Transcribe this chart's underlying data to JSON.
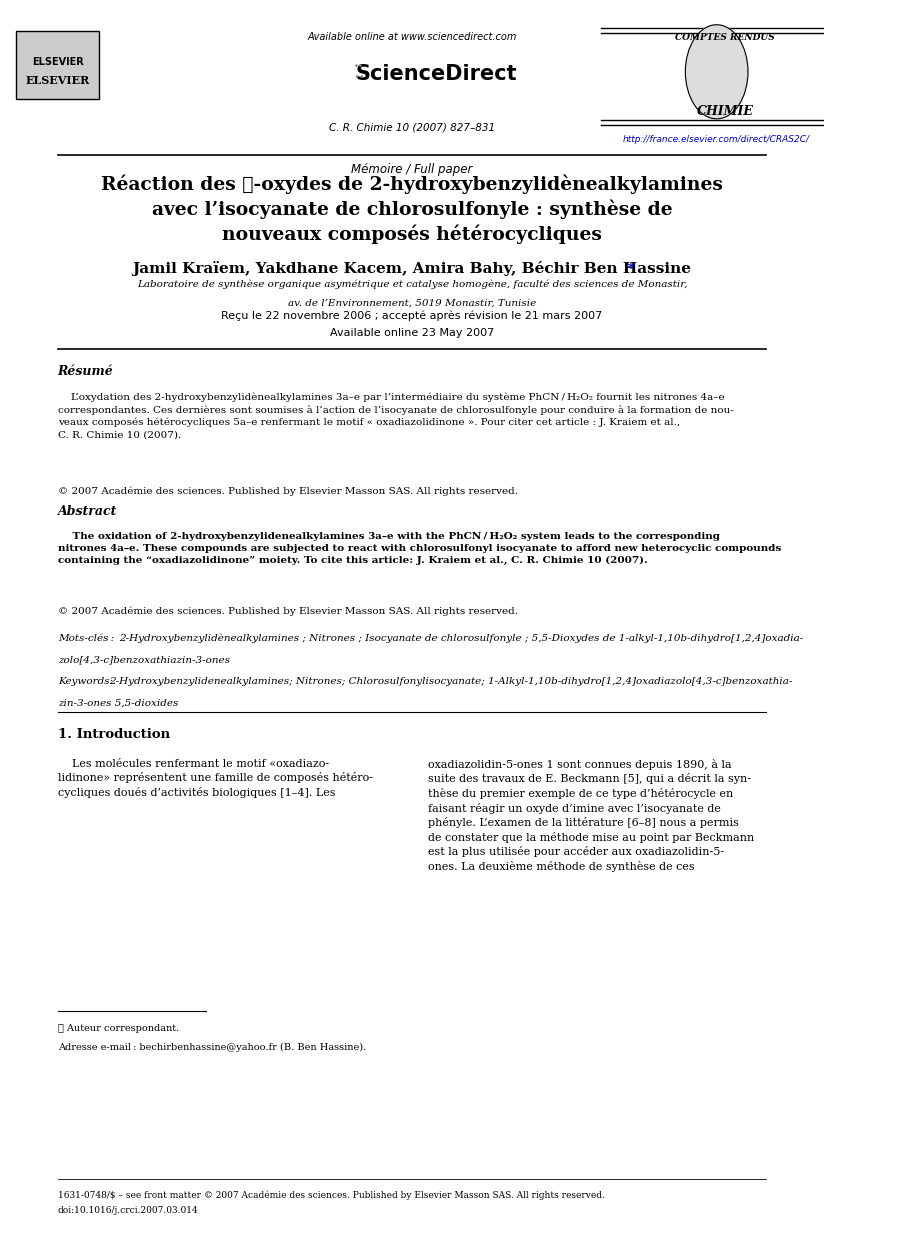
{
  "page_width": 9.07,
  "page_height": 12.38,
  "bg_color": "#ffffff",
  "header": {
    "available_online": "Available online at www.sciencedirect.com",
    "journal_info": "C. R. Chimie 10 (2007) 827–831",
    "url": "http://france.elsevier.com/direct/CRAS2C/",
    "comptes_rendus": "COMPTES RENDUS",
    "chimie": "CHIMIE"
  },
  "section_label": "Mémoire / Full paper",
  "title_line1": "Réaction des ℱ-oxydes de 2-hydroxybenzylidènealkylamines",
  "title_line2": "avec l’isocyanate de chlorosulfonyle : synthèse de",
  "title_line3": "nouveaux composés hétérocycliques",
  "authors": "Jamil Kraïem, Yakdhane Kacem, Amira Bahy, Béchir Ben Hassine",
  "affiliation_line1": "Laboratoire de synthèse organique asymétrique et catalyse homogène, faculté des sciences de Monastir,",
  "affiliation_line2": "av. de l’Environnement, 5019 Monastir, Tunisie",
  "received": "Reçu le 22 novembre 2006 ; accepté après révision le 21 mars 2007",
  "available_online2": "Available online 23 May 2007",
  "resume_title": "Résumé",
  "resume_body": "L’oxydation des 2-hydroxybenzylidènealkylamines 3a–e par l’intermédiaire du système PhCN / H₂O₂ fournit les nitrones 4a–e correspondantes. Ces dernières sont soumises à l’action de l’isocyanate de chlorosulfonyle pour conduire à la formation de nouveaux composés hétérocycliques 5a–e renfermant le motif « oxadiazolidinone ». Pour citer cet article : J. Kraiem et al., C. R. Chimie 10 (2007).",
  "resume_copyright": "© 2007 Académie des sciences. Published by Elsevier Masson SAS. All rights reserved.",
  "abstract_title": "Abstract",
  "abstract_body": "The oxidation of 2-hydroxybenzylidenealkylamines 3a–e with the PhCN / H₂O₂ system leads to the corresponding nitrones 4a–e. These compounds are subjected to react with chlorosulfonyl isocyanate to afford new heterocyclic compounds containing the “oxadiazolidinone” moiety. To cite this article: J. Kraiem et al., C. R. Chimie 10 (2007).",
  "abstract_copyright": "© 2007 Académie des sciences. Published by Elsevier Masson SAS. All rights reserved.",
  "motscles_label": "Mots-clés :",
  "motscles_body": "2-Hydroxybenzylidènealkylamines ; Nitrones ; Isocyanate de chlorosulfonyle ; 5,5-Dioxydes de 1-alkyl-1,10b-dihydro[1,2,4]oxadiazolo[4,3-c]benzoxathiazin-3-ones",
  "keywords_label": "Keywords:",
  "keywords_body": "2-Hydroxybenzylidenealkylamines; Nitrones; Chlorosulfonylisocyanate; 1-Alkyl-1,10b-dihydro[1,2,4]oxadiazolo[4,3-c]benzoxathiazin-3-ones 5,5-dioxides",
  "intro_title": "1. Introduction",
  "intro_left": "Les molécules renfermant le motif «oxadiazolidinone» représentent une famille de composés hétérocycliques doués d’activités biologiques [1–4]. Les",
  "intro_right": "oxadiazolidin-5-ones 1 sont connues depuis 1890, à la suite des travaux de E. Beckmann [5], qui a décrit la synthèse du premier exemple de ce type d’hétérocycle en faisant réagir un oxyde d’imine avec l’isocyanate de phényle. L’examen de la littérature [6–8] nous a permis de constater que la méthode mise au point par Beckmann est la plus utilisée pour accéder aux oxadiazolidin-5-ones. La deuxième méthode de synthèse de ces",
  "footnote_star": "* Auteur correspondant.",
  "footnote_email": "Adresse e-mail : bechirbenhassine@yahoo.fr (B. Ben Hassine).",
  "footer_issn": "1631-0748/$ – see front matter © 2007 Académie des sciences. Published by Elsevier Masson SAS. All rights reserved.",
  "footer_doi": "doi:10.1016/j.crci.2007.03.014"
}
